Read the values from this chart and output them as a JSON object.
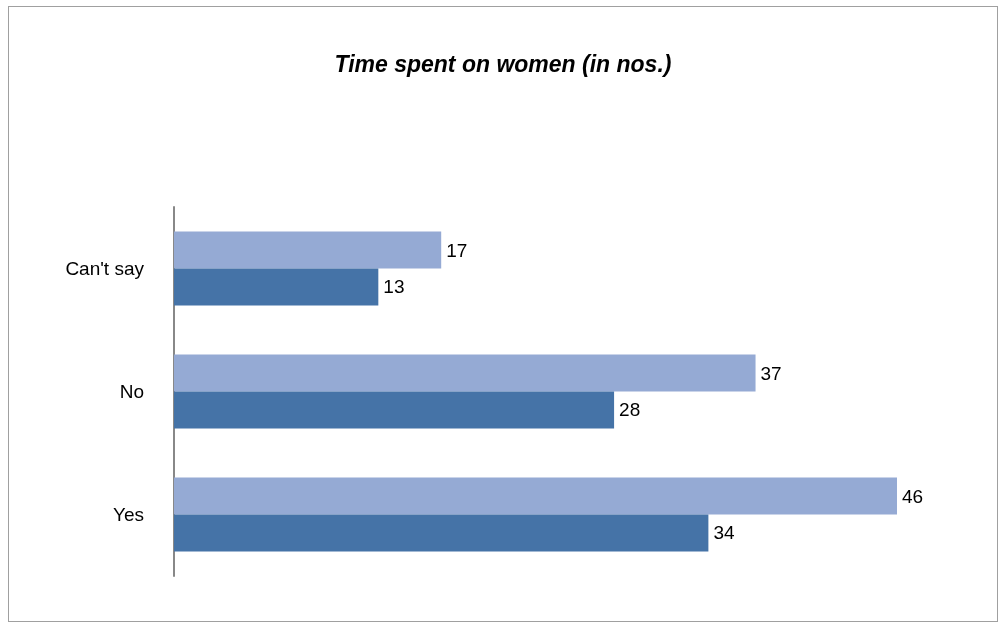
{
  "chart_data": {
    "type": "bar",
    "orientation": "horizontal",
    "title": "Time spent on women (in nos.)",
    "categories": [
      "Can't say",
      "No",
      "Yes"
    ],
    "series": [
      {
        "color": "#95aad4",
        "values": [
          17,
          37,
          46
        ]
      },
      {
        "color": "#4573a7",
        "values": [
          13,
          28,
          34
        ]
      }
    ],
    "data_labels": true,
    "tick_labels": "y"
  }
}
